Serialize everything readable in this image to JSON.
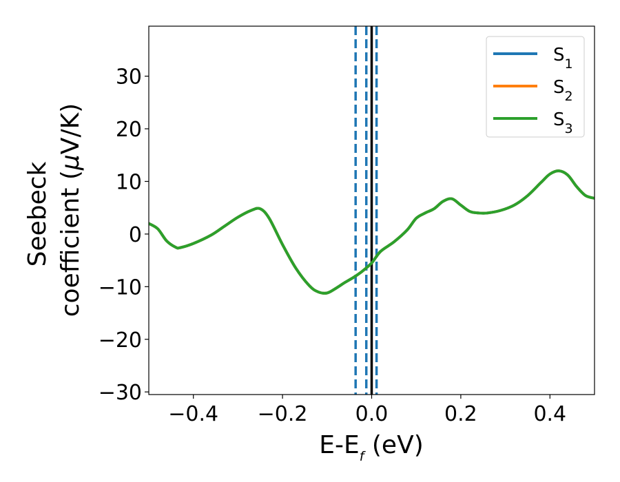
{
  "chart_data": {
    "type": "line",
    "xlabel": "E-E",
    "xlabel_subscript": "f",
    "xlabel_unit": " (eV)",
    "ylabel_line1": "Seebeck",
    "ylabel_line2": "coefficient  (",
    "ylabel_mu": "μ",
    "ylabel_unit": "V/K)",
    "xlim": [
      -0.5,
      0.5
    ],
    "ylim": [
      -30.5,
      39.5
    ],
    "xticks": [
      -0.4,
      -0.2,
      0.0,
      0.2,
      0.4
    ],
    "xtick_labels": [
      "−0.4",
      "−0.2",
      "0.0",
      "0.2",
      "0.4"
    ],
    "yticks": [
      -30,
      -20,
      -10,
      0,
      10,
      20,
      30
    ],
    "ytick_labels": [
      "−30",
      "−20",
      "−10",
      "0",
      "10",
      "20",
      "30"
    ],
    "grid": false,
    "legend_position": "top-right",
    "vlines": [
      {
        "x": -0.036,
        "style": "dashed",
        "color": "#1f77b4"
      },
      {
        "x": -0.012,
        "style": "dashed",
        "color": "#1f77b4"
      },
      {
        "x": 0.0,
        "style": "solid",
        "color": "#000000"
      },
      {
        "x": 0.011,
        "style": "dashed",
        "color": "#1f77b4"
      }
    ],
    "series": [
      {
        "name": "S",
        "subscript": "1",
        "color": "#1f77b4",
        "x": [
          -0.5,
          -0.48,
          -0.46,
          -0.44,
          -0.43,
          -0.4,
          -0.36,
          -0.33,
          -0.3,
          -0.27,
          -0.25,
          -0.23,
          -0.2,
          -0.17,
          -0.14,
          -0.12,
          -0.1,
          -0.08,
          -0.06,
          -0.04,
          -0.02,
          0.0,
          0.02,
          0.05,
          0.08,
          0.1,
          0.12,
          0.14,
          0.16,
          0.18,
          0.2,
          0.22,
          0.24,
          0.26,
          0.29,
          0.32,
          0.35,
          0.38,
          0.4,
          0.42,
          0.44,
          0.46,
          0.48,
          0.5
        ],
        "y": [
          2.0,
          1.0,
          -1.3,
          -2.5,
          -2.6,
          -1.8,
          -0.2,
          1.5,
          3.2,
          4.5,
          4.8,
          3.0,
          -2.0,
          -6.5,
          -9.8,
          -11.0,
          -11.2,
          -10.3,
          -9.2,
          -8.2,
          -7.0,
          -5.5,
          -3.3,
          -1.5,
          0.8,
          3.0,
          4.0,
          4.8,
          6.2,
          6.7,
          5.5,
          4.3,
          4.0,
          4.0,
          4.5,
          5.5,
          7.3,
          9.8,
          11.4,
          12.0,
          11.2,
          9.0,
          7.3,
          6.8
        ]
      },
      {
        "name": "S",
        "subscript": "2",
        "color": "#ff7f0e",
        "x": [
          -0.5,
          -0.48,
          -0.46,
          -0.44,
          -0.43,
          -0.4,
          -0.36,
          -0.33,
          -0.3,
          -0.27,
          -0.25,
          -0.23,
          -0.2,
          -0.17,
          -0.14,
          -0.12,
          -0.1,
          -0.08,
          -0.06,
          -0.04,
          -0.02,
          0.0,
          0.02,
          0.05,
          0.08,
          0.1,
          0.12,
          0.14,
          0.16,
          0.18,
          0.2,
          0.22,
          0.24,
          0.26,
          0.29,
          0.32,
          0.35,
          0.38,
          0.4,
          0.42,
          0.44,
          0.46,
          0.48,
          0.5
        ],
        "y": [
          2.0,
          1.0,
          -1.3,
          -2.5,
          -2.6,
          -1.8,
          -0.2,
          1.5,
          3.2,
          4.5,
          4.8,
          3.0,
          -2.0,
          -6.5,
          -9.8,
          -11.0,
          -11.2,
          -10.3,
          -9.2,
          -8.2,
          -7.0,
          -5.5,
          -3.3,
          -1.5,
          0.8,
          3.0,
          4.0,
          4.8,
          6.2,
          6.7,
          5.5,
          4.3,
          4.0,
          4.0,
          4.5,
          5.5,
          7.3,
          9.8,
          11.4,
          12.0,
          11.2,
          9.0,
          7.3,
          6.8
        ]
      },
      {
        "name": "S",
        "subscript": "3",
        "color": "#2ca02c",
        "x": [
          -0.5,
          -0.48,
          -0.46,
          -0.44,
          -0.43,
          -0.4,
          -0.36,
          -0.33,
          -0.3,
          -0.27,
          -0.25,
          -0.23,
          -0.2,
          -0.17,
          -0.14,
          -0.12,
          -0.1,
          -0.08,
          -0.06,
          -0.04,
          -0.02,
          0.0,
          0.02,
          0.05,
          0.08,
          0.1,
          0.12,
          0.14,
          0.16,
          0.18,
          0.2,
          0.22,
          0.24,
          0.26,
          0.29,
          0.32,
          0.35,
          0.38,
          0.4,
          0.42,
          0.44,
          0.46,
          0.48,
          0.5
        ],
        "y": [
          2.0,
          1.0,
          -1.3,
          -2.5,
          -2.6,
          -1.8,
          -0.2,
          1.5,
          3.2,
          4.5,
          4.8,
          3.0,
          -2.0,
          -6.5,
          -9.8,
          -11.0,
          -11.2,
          -10.3,
          -9.2,
          -8.2,
          -7.0,
          -5.5,
          -3.3,
          -1.5,
          0.8,
          3.0,
          4.0,
          4.8,
          6.2,
          6.7,
          5.5,
          4.3,
          4.0,
          4.0,
          4.5,
          5.5,
          7.3,
          9.8,
          11.4,
          12.0,
          11.2,
          9.0,
          7.3,
          6.8
        ]
      }
    ]
  }
}
